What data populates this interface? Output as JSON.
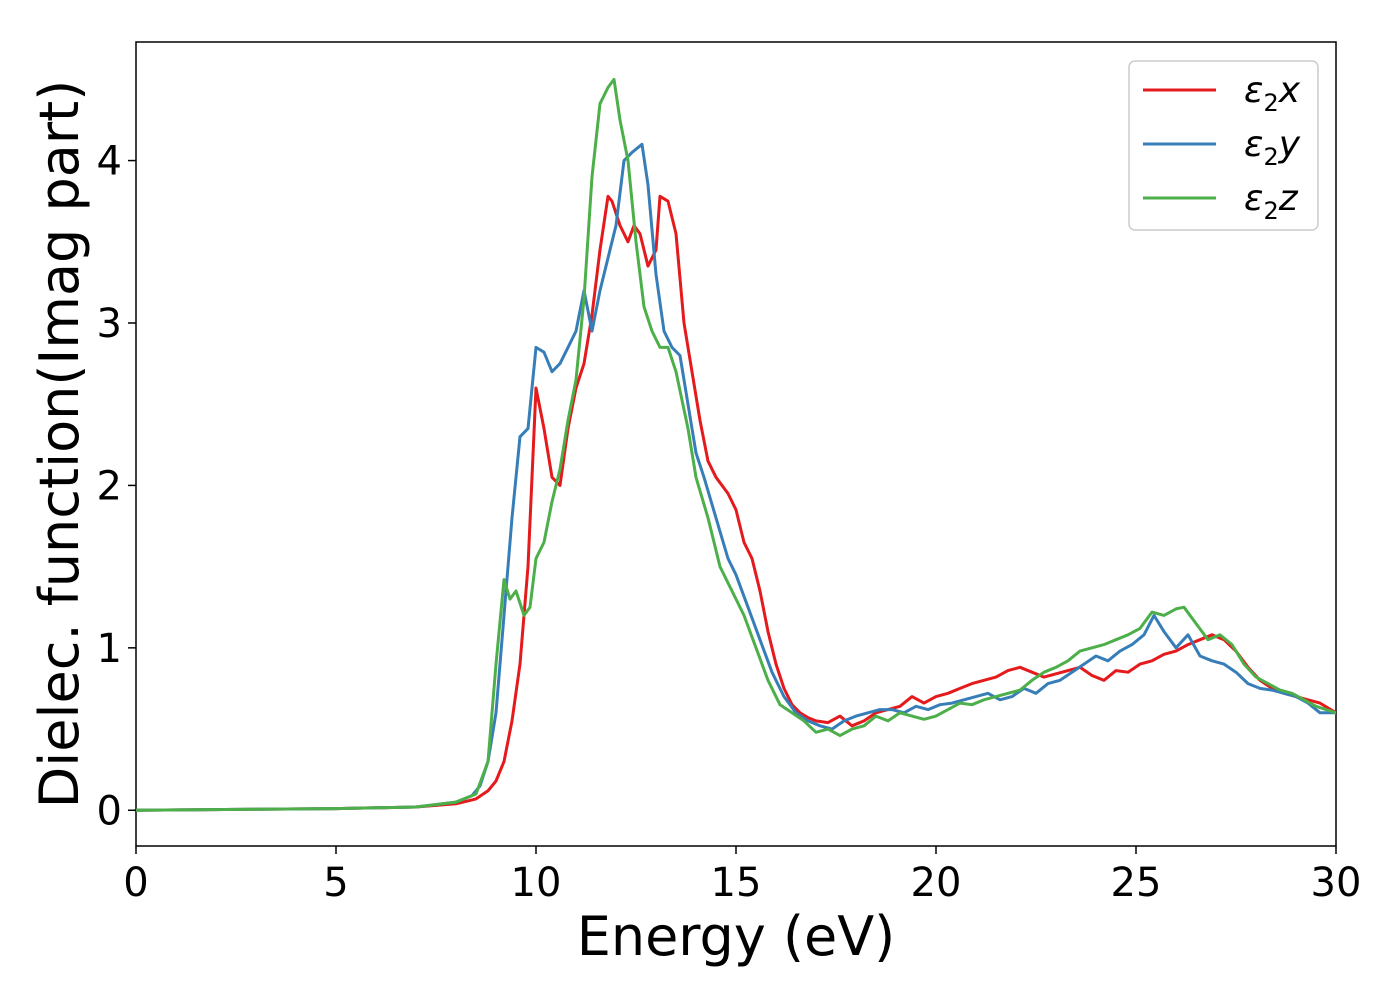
{
  "chart_data": {
    "type": "line",
    "title": "",
    "xlabel": "Energy (eV)",
    "ylabel": "Dielec. function(Imag part)",
    "xlim": [
      0,
      30
    ],
    "ylim": [
      -0.22,
      4.73
    ],
    "xticks": [
      0,
      5,
      10,
      15,
      20,
      25,
      30
    ],
    "yticks": [
      0,
      1,
      2,
      3,
      4
    ],
    "xtick_labels": [
      "0",
      "5",
      "10",
      "15",
      "20",
      "25",
      "30"
    ],
    "ytick_labels": [
      "0",
      "1",
      "2",
      "3",
      "4"
    ],
    "grid": false,
    "legend_position": "top-right",
    "series": [
      {
        "name": "ε2x",
        "legend_base": "ε",
        "legend_sub": "2",
        "legend_tail": "x",
        "color": "#e41a1c",
        "x": [
          0,
          5,
          7,
          8,
          8.5,
          8.8,
          9.0,
          9.2,
          9.4,
          9.6,
          9.8,
          10.0,
          10.2,
          10.4,
          10.6,
          10.8,
          11.0,
          11.2,
          11.4,
          11.6,
          11.8,
          11.9,
          12.1,
          12.3,
          12.45,
          12.6,
          12.8,
          13.0,
          13.1,
          13.3,
          13.5,
          13.7,
          13.9,
          14.1,
          14.3,
          14.5,
          14.8,
          15.0,
          15.2,
          15.4,
          15.6,
          15.8,
          16.0,
          16.2,
          16.4,
          16.6,
          16.8,
          17.0,
          17.3,
          17.6,
          17.9,
          18.2,
          18.5,
          18.8,
          19.1,
          19.4,
          19.7,
          20.0,
          20.3,
          20.6,
          20.9,
          21.2,
          21.5,
          21.8,
          22.1,
          22.4,
          22.7,
          23.0,
          23.3,
          23.6,
          23.9,
          24.2,
          24.5,
          24.8,
          25.1,
          25.4,
          25.7,
          26.0,
          26.3,
          26.6,
          26.9,
          27.2,
          27.5,
          27.8,
          28.1,
          28.4,
          28.7,
          29.0,
          29.3,
          29.6,
          30.0
        ],
        "values": [
          0.0,
          0.01,
          0.02,
          0.04,
          0.07,
          0.12,
          0.18,
          0.3,
          0.55,
          0.9,
          1.5,
          2.6,
          2.35,
          2.05,
          2.0,
          2.35,
          2.6,
          2.75,
          3.05,
          3.45,
          3.78,
          3.75,
          3.6,
          3.5,
          3.6,
          3.55,
          3.35,
          3.45,
          3.78,
          3.75,
          3.55,
          3.0,
          2.7,
          2.4,
          2.15,
          2.05,
          1.95,
          1.85,
          1.65,
          1.55,
          1.35,
          1.1,
          0.9,
          0.75,
          0.65,
          0.6,
          0.57,
          0.55,
          0.54,
          0.58,
          0.52,
          0.55,
          0.6,
          0.62,
          0.64,
          0.7,
          0.66,
          0.7,
          0.72,
          0.75,
          0.78,
          0.8,
          0.82,
          0.86,
          0.88,
          0.85,
          0.82,
          0.84,
          0.86,
          0.88,
          0.83,
          0.8,
          0.86,
          0.85,
          0.9,
          0.92,
          0.96,
          0.98,
          1.02,
          1.05,
          1.08,
          1.05,
          0.98,
          0.88,
          0.8,
          0.75,
          0.72,
          0.7,
          0.68,
          0.66,
          0.6
        ]
      },
      {
        "name": "ε2y",
        "legend_base": "ε",
        "legend_sub": "2",
        "legend_tail": "y",
        "color": "#377eb8",
        "x": [
          0,
          5,
          7,
          8,
          8.4,
          8.6,
          8.8,
          9.0,
          9.2,
          9.4,
          9.6,
          9.8,
          10.0,
          10.2,
          10.4,
          10.6,
          10.8,
          11.0,
          11.2,
          11.4,
          11.6,
          11.8,
          12.0,
          12.2,
          12.4,
          12.65,
          12.8,
          13.0,
          13.2,
          13.4,
          13.6,
          13.8,
          14.0,
          14.2,
          14.5,
          14.8,
          15.0,
          15.3,
          15.6,
          15.9,
          16.2,
          16.5,
          16.8,
          17.1,
          17.4,
          17.7,
          18.0,
          18.3,
          18.6,
          18.9,
          19.2,
          19.5,
          19.8,
          20.1,
          20.4,
          20.7,
          21.0,
          21.3,
          21.6,
          21.9,
          22.2,
          22.5,
          22.8,
          23.1,
          23.4,
          23.7,
          24.0,
          24.3,
          24.6,
          24.9,
          25.2,
          25.45,
          25.7,
          26.0,
          26.3,
          26.6,
          26.9,
          27.2,
          27.5,
          27.8,
          28.1,
          28.4,
          28.7,
          29.0,
          29.3,
          29.6,
          30.0
        ],
        "values": [
          0.0,
          0.01,
          0.02,
          0.05,
          0.09,
          0.15,
          0.3,
          0.6,
          1.2,
          1.8,
          2.3,
          2.35,
          2.85,
          2.82,
          2.7,
          2.75,
          2.85,
          2.95,
          3.2,
          2.95,
          3.2,
          3.4,
          3.6,
          4.0,
          4.05,
          4.1,
          3.85,
          3.3,
          2.95,
          2.85,
          2.8,
          2.5,
          2.2,
          2.05,
          1.8,
          1.55,
          1.45,
          1.25,
          1.05,
          0.85,
          0.7,
          0.6,
          0.55,
          0.52,
          0.5,
          0.55,
          0.58,
          0.6,
          0.62,
          0.62,
          0.6,
          0.64,
          0.62,
          0.65,
          0.66,
          0.68,
          0.7,
          0.72,
          0.68,
          0.7,
          0.75,
          0.72,
          0.78,
          0.8,
          0.85,
          0.9,
          0.95,
          0.92,
          0.98,
          1.02,
          1.08,
          1.2,
          1.1,
          1.0,
          1.08,
          0.95,
          0.92,
          0.9,
          0.85,
          0.78,
          0.75,
          0.74,
          0.72,
          0.7,
          0.66,
          0.6,
          0.6
        ]
      },
      {
        "name": "ε2z",
        "legend_base": "ε",
        "legend_sub": "2",
        "legend_tail": "z",
        "color": "#4daf4a",
        "x": [
          0,
          5,
          7,
          8,
          8.5,
          8.8,
          9.0,
          9.2,
          9.35,
          9.5,
          9.7,
          9.85,
          10.0,
          10.2,
          10.4,
          10.6,
          10.8,
          11.0,
          11.2,
          11.4,
          11.6,
          11.8,
          11.95,
          12.1,
          12.3,
          12.5,
          12.7,
          12.9,
          13.1,
          13.3,
          13.5,
          13.8,
          14.0,
          14.3,
          14.6,
          14.9,
          15.2,
          15.5,
          15.8,
          16.1,
          16.4,
          16.7,
          17.0,
          17.3,
          17.6,
          17.9,
          18.2,
          18.5,
          18.8,
          19.1,
          19.4,
          19.7,
          20.0,
          20.3,
          20.6,
          20.9,
          21.2,
          21.5,
          21.8,
          22.1,
          22.4,
          22.7,
          23.0,
          23.3,
          23.6,
          23.9,
          24.2,
          24.5,
          24.8,
          25.1,
          25.4,
          25.7,
          26.0,
          26.2,
          26.5,
          26.8,
          27.1,
          27.4,
          27.7,
          28.0,
          28.3,
          28.6,
          28.9,
          29.2,
          29.5,
          30.0
        ],
        "values": [
          0.0,
          0.01,
          0.02,
          0.05,
          0.1,
          0.3,
          0.9,
          1.42,
          1.3,
          1.35,
          1.2,
          1.25,
          1.55,
          1.65,
          1.9,
          2.1,
          2.4,
          2.65,
          3.15,
          3.9,
          4.35,
          4.45,
          4.5,
          4.25,
          4.0,
          3.5,
          3.1,
          2.95,
          2.85,
          2.85,
          2.7,
          2.35,
          2.05,
          1.8,
          1.5,
          1.35,
          1.2,
          1.0,
          0.8,
          0.65,
          0.6,
          0.55,
          0.48,
          0.5,
          0.46,
          0.5,
          0.52,
          0.58,
          0.55,
          0.6,
          0.58,
          0.56,
          0.58,
          0.62,
          0.66,
          0.65,
          0.68,
          0.7,
          0.72,
          0.74,
          0.8,
          0.85,
          0.88,
          0.92,
          0.98,
          1.0,
          1.02,
          1.05,
          1.08,
          1.12,
          1.22,
          1.2,
          1.24,
          1.25,
          1.15,
          1.05,
          1.08,
          1.02,
          0.9,
          0.82,
          0.78,
          0.74,
          0.72,
          0.68,
          0.64,
          0.6
        ]
      }
    ]
  }
}
